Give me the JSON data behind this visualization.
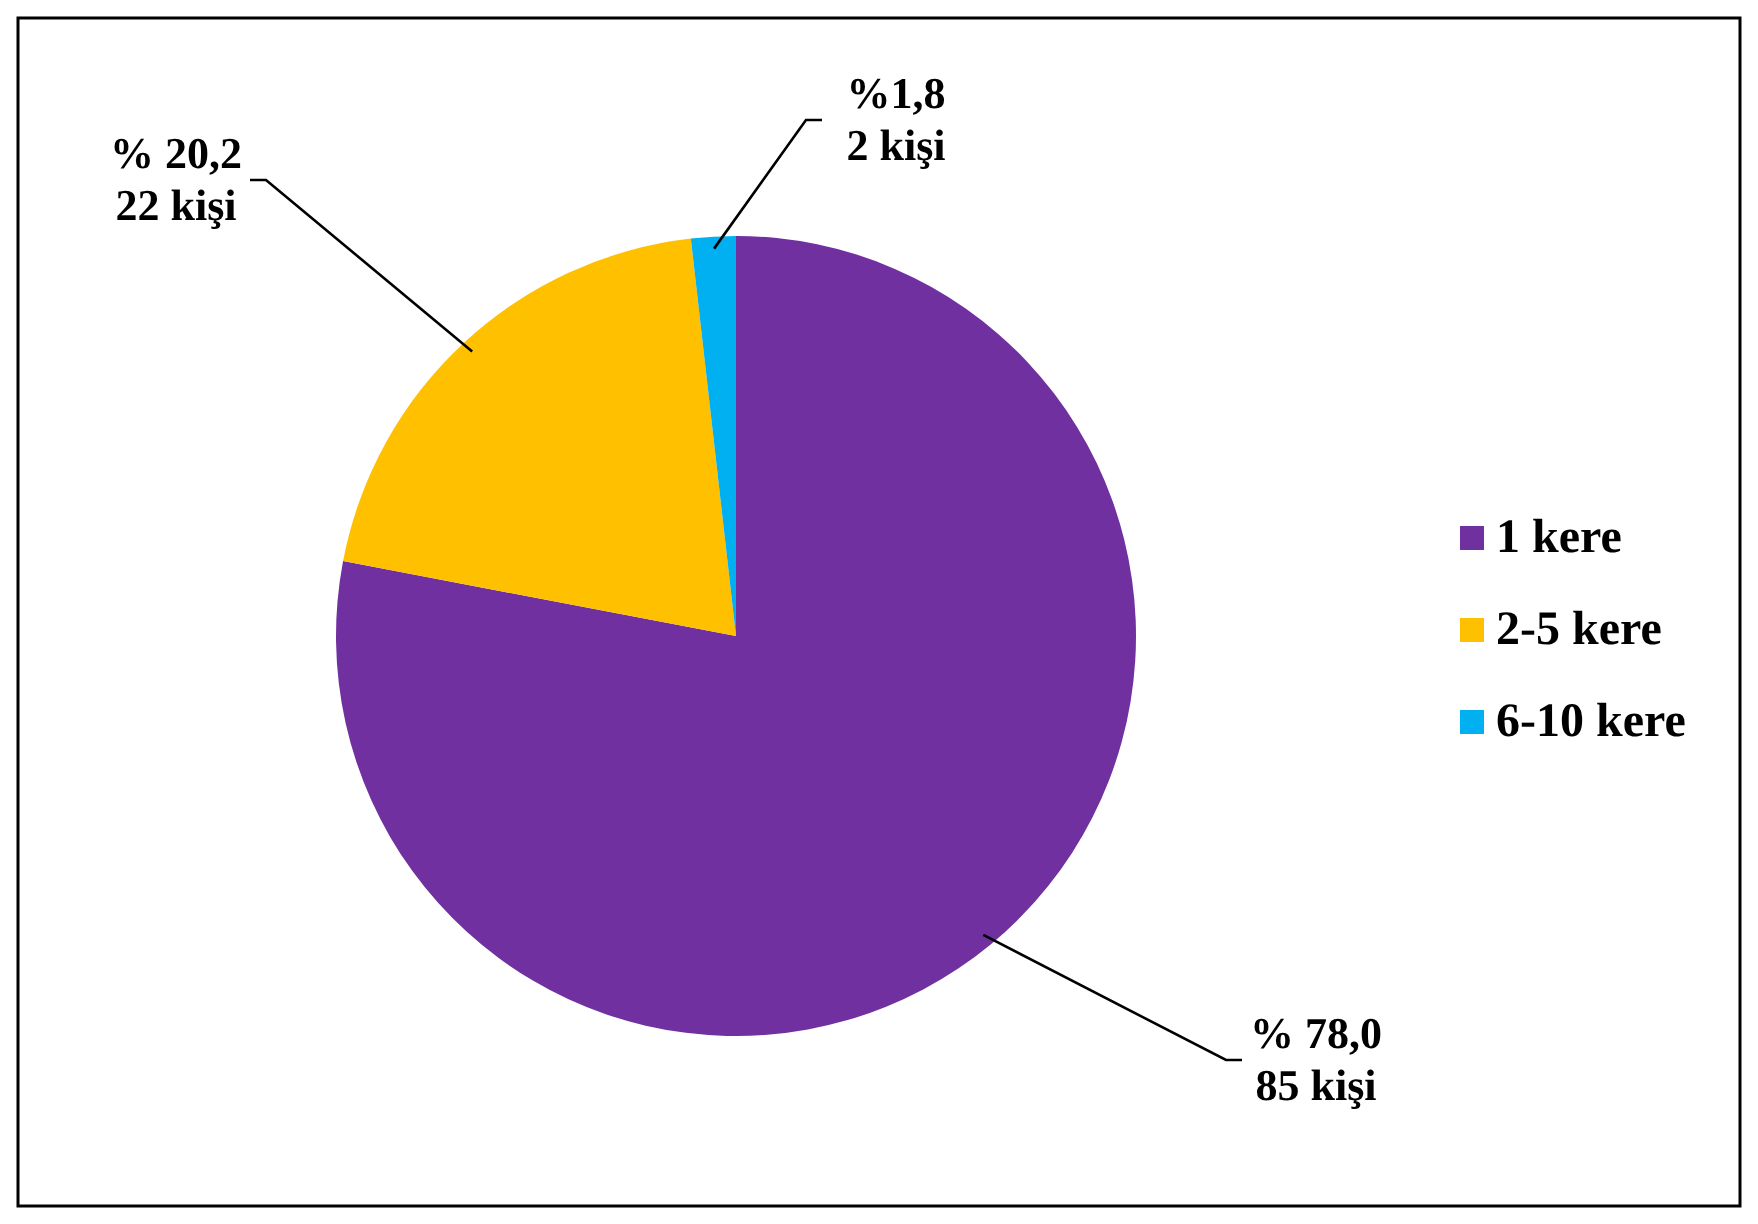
{
  "chart_data": {
    "type": "pie",
    "categories": [
      "1 kere",
      "2-5 kere",
      "6-10 kere"
    ],
    "values": [
      78.0,
      20.2,
      1.8
    ],
    "colors": [
      "#7030a0",
      "#ffc000",
      "#00b0f0"
    ],
    "value_labels": [
      "% 78,0\n85 kişi",
      "% 20,2\n22 kişi",
      "%1,8\n2 kişi"
    ],
    "legend": "right"
  }
}
